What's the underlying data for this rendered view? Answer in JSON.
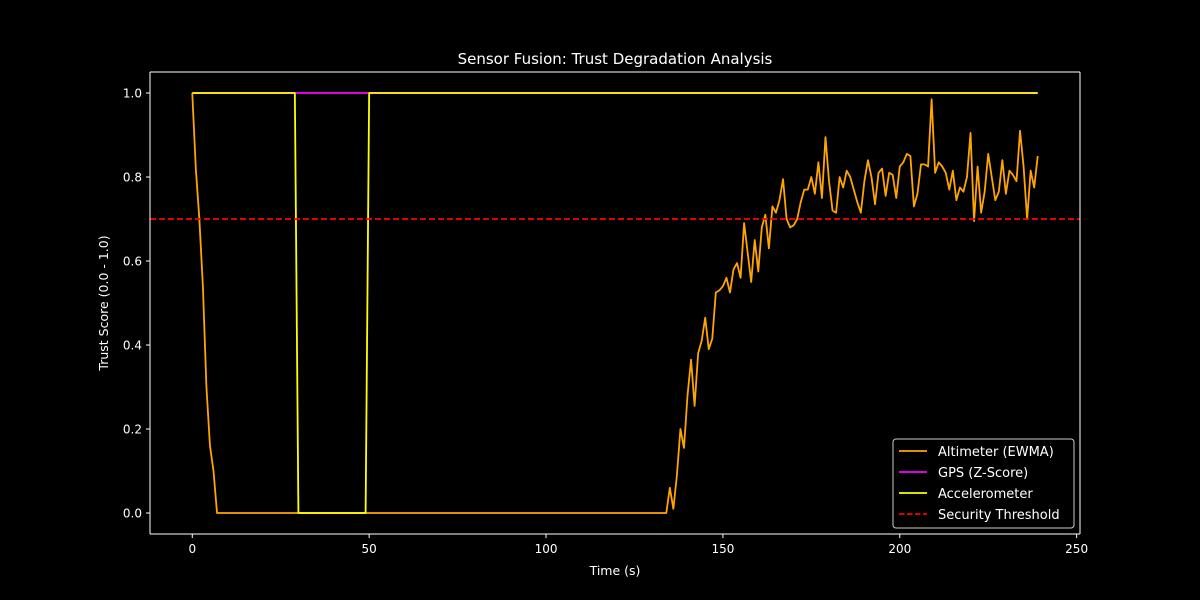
{
  "chart_data": {
    "type": "line",
    "title": "Sensor Fusion: Trust Degradation Analysis",
    "xlabel": "Time (s)",
    "ylabel": "Trust Score (0.0 - 1.0)",
    "xlim": [
      -11.95,
      250.95
    ],
    "ylim": [
      -0.05,
      1.05
    ],
    "xticks": [
      0,
      50,
      100,
      150,
      200,
      250
    ],
    "xtick_labels": [
      "0",
      "50",
      "100",
      "150",
      "200",
      "250"
    ],
    "yticks": [
      0.0,
      0.2,
      0.4,
      0.6,
      0.8,
      1.0
    ],
    "ytick_labels": [
      "0.0",
      "0.2",
      "0.4",
      "0.6",
      "0.8",
      "1.0"
    ],
    "grid": false,
    "legend_position": "lower right",
    "background": "#000000",
    "series": [
      {
        "name": "Altimeter (EWMA)",
        "color": "#FFA500",
        "style": "solid",
        "x_start": 0,
        "x_step": 1,
        "values": [
          1.0,
          0.82,
          0.7,
          0.54,
          0.3,
          0.16,
          0.1,
          0.0,
          0.0,
          0.0,
          0.0,
          0.0,
          0.0,
          0.0,
          0.0,
          0.0,
          0.0,
          0.0,
          0.0,
          0.0,
          0.0,
          0.0,
          0.0,
          0.0,
          0.0,
          0.0,
          0.0,
          0.0,
          0.0,
          0.0,
          0.0,
          0.0,
          0.0,
          0.0,
          0.0,
          0.0,
          0.0,
          0.0,
          0.0,
          0.0,
          0.0,
          0.0,
          0.0,
          0.0,
          0.0,
          0.0,
          0.0,
          0.0,
          0.0,
          0.0,
          0.0,
          0.0,
          0.0,
          0.0,
          0.0,
          0.0,
          0.0,
          0.0,
          0.0,
          0.0,
          0.0,
          0.0,
          0.0,
          0.0,
          0.0,
          0.0,
          0.0,
          0.0,
          0.0,
          0.0,
          0.0,
          0.0,
          0.0,
          0.0,
          0.0,
          0.0,
          0.0,
          0.0,
          0.0,
          0.0,
          0.0,
          0.0,
          0.0,
          0.0,
          0.0,
          0.0,
          0.0,
          0.0,
          0.0,
          0.0,
          0.0,
          0.0,
          0.0,
          0.0,
          0.0,
          0.0,
          0.0,
          0.0,
          0.0,
          0.0,
          0.0,
          0.0,
          0.0,
          0.0,
          0.0,
          0.0,
          0.0,
          0.0,
          0.0,
          0.0,
          0.0,
          0.0,
          0.0,
          0.0,
          0.0,
          0.0,
          0.0,
          0.0,
          0.0,
          0.0,
          0.0,
          0.0,
          0.0,
          0.0,
          0.0,
          0.0,
          0.0,
          0.0,
          0.0,
          0.0,
          0.0,
          0.0,
          0.0,
          0.0,
          0.0,
          0.06,
          0.01,
          0.09,
          0.2,
          0.155,
          0.28,
          0.365,
          0.255,
          0.38,
          0.41,
          0.465,
          0.39,
          0.415,
          0.525,
          0.53,
          0.54,
          0.56,
          0.525,
          0.58,
          0.595,
          0.56,
          0.69,
          0.62,
          0.55,
          0.65,
          0.575,
          0.68,
          0.71,
          0.63,
          0.73,
          0.715,
          0.745,
          0.795,
          0.7,
          0.68,
          0.685,
          0.7,
          0.74,
          0.77,
          0.77,
          0.8,
          0.76,
          0.835,
          0.75,
          0.895,
          0.79,
          0.72,
          0.715,
          0.8,
          0.775,
          0.815,
          0.8,
          0.77,
          0.74,
          0.715,
          0.79,
          0.84,
          0.8,
          0.735,
          0.81,
          0.82,
          0.755,
          0.81,
          0.805,
          0.75,
          0.825,
          0.835,
          0.855,
          0.85,
          0.73,
          0.76,
          0.83,
          0.83,
          0.825,
          0.985,
          0.81,
          0.835,
          0.825,
          0.81,
          0.77,
          0.815,
          0.745,
          0.775,
          0.765,
          0.8,
          0.905,
          0.695,
          0.825,
          0.715,
          0.765,
          0.855,
          0.8,
          0.745,
          0.765,
          0.84,
          0.76,
          0.815,
          0.805,
          0.79,
          0.91,
          0.825,
          0.7,
          0.815,
          0.775,
          0.85
        ]
      },
      {
        "name": "GPS (Z-Score)",
        "color": "#FF00FF",
        "style": "solid",
        "points": [
          [
            0,
            1.0
          ],
          [
            239,
            1.0
          ]
        ]
      },
      {
        "name": "Accelerometer",
        "color": "#FFFF00",
        "style": "solid",
        "points": [
          [
            0,
            1.0
          ],
          [
            29,
            1.0
          ],
          [
            30,
            0.0
          ],
          [
            49,
            0.0
          ],
          [
            50,
            1.0
          ],
          [
            239,
            1.0
          ]
        ]
      },
      {
        "name": "Security Threshold",
        "color": "#FF0000",
        "style": "dashed",
        "y": 0.7
      }
    ]
  },
  "legend": {
    "items": [
      {
        "label": "Altimeter (EWMA)",
        "color": "#FFA500",
        "style": "solid"
      },
      {
        "label": "GPS (Z-Score)",
        "color": "#FF00FF",
        "style": "solid"
      },
      {
        "label": "Accelerometer",
        "color": "#FFFF00",
        "style": "solid"
      },
      {
        "label": "Security Threshold",
        "color": "#FF0000",
        "style": "dashed"
      }
    ]
  }
}
